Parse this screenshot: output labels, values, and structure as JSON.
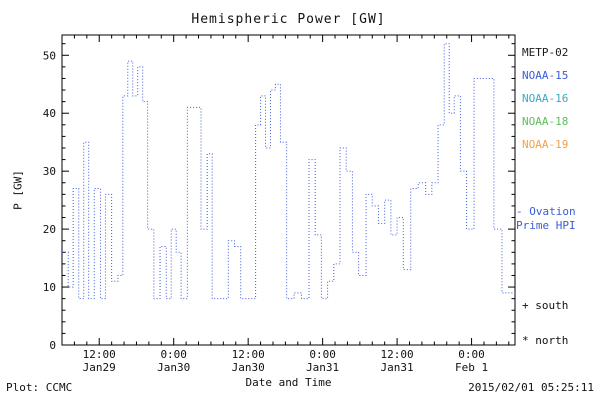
{
  "chart_data": {
    "type": "line",
    "subtype": "step",
    "line_style": "dotted",
    "line_color": "#3b5bdb",
    "title": "Hemispheric Power [GW]",
    "xlabel": "Date and Time",
    "ylabel": "P [GW]",
    "x_unit": "hours from 2015-01-29 00:00",
    "xlim": [
      6,
      79
    ],
    "ylim": [
      0,
      53.5
    ],
    "y_ticks": [
      0,
      10,
      20,
      30,
      40,
      50
    ],
    "x_ticks": [
      {
        "hour": 12,
        "time": "12:00",
        "date": "Jan29"
      },
      {
        "hour": 24,
        "time": "0:00",
        "date": "Jan30"
      },
      {
        "hour": 36,
        "time": "12:00",
        "date": "Jan30"
      },
      {
        "hour": 48,
        "time": "0:00",
        "date": "Jan31"
      },
      {
        "hour": 60,
        "time": "12:00",
        "date": "Jan31"
      },
      {
        "hour": 72,
        "time": "0:00",
        "date": "Feb 1"
      }
    ],
    "points": [
      [
        6,
        16
      ],
      [
        7,
        10
      ],
      [
        7.8,
        27
      ],
      [
        8.7,
        8
      ],
      [
        9.5,
        35
      ],
      [
        10.3,
        8
      ],
      [
        11.2,
        27
      ],
      [
        12.2,
        8
      ],
      [
        13,
        26
      ],
      [
        14,
        11
      ],
      [
        15,
        12
      ],
      [
        15.8,
        43
      ],
      [
        16.6,
        49
      ],
      [
        17.4,
        43
      ],
      [
        18.2,
        48
      ],
      [
        19,
        42
      ],
      [
        19.8,
        20
      ],
      [
        20.8,
        8
      ],
      [
        21.8,
        17
      ],
      [
        22.8,
        8
      ],
      [
        23.6,
        20
      ],
      [
        24.4,
        16
      ],
      [
        25.2,
        8
      ],
      [
        26.2,
        41
      ],
      [
        27.4,
        41
      ],
      [
        28.4,
        20
      ],
      [
        29.4,
        33
      ],
      [
        30.2,
        8
      ],
      [
        31.6,
        8
      ],
      [
        32.8,
        18
      ],
      [
        33.8,
        17
      ],
      [
        34.8,
        8
      ],
      [
        36.2,
        8
      ],
      [
        37.2,
        38
      ],
      [
        38,
        43
      ],
      [
        38.8,
        34
      ],
      [
        39.6,
        44
      ],
      [
        40.4,
        45
      ],
      [
        41.2,
        35
      ],
      [
        42.2,
        8
      ],
      [
        43.4,
        9
      ],
      [
        44.6,
        8
      ],
      [
        45.8,
        32
      ],
      [
        46.8,
        19
      ],
      [
        47.8,
        8
      ],
      [
        48.8,
        11
      ],
      [
        49.8,
        14
      ],
      [
        50.8,
        34
      ],
      [
        51.8,
        30
      ],
      [
        52.8,
        16
      ],
      [
        53.8,
        12
      ],
      [
        55,
        26
      ],
      [
        56,
        24
      ],
      [
        57,
        21
      ],
      [
        58,
        25
      ],
      [
        59,
        19
      ],
      [
        60,
        22
      ],
      [
        61,
        13
      ],
      [
        62.2,
        27
      ],
      [
        63.4,
        28
      ],
      [
        64.6,
        26
      ],
      [
        65.6,
        28
      ],
      [
        66.6,
        38
      ],
      [
        67.6,
        52
      ],
      [
        68.4,
        40
      ],
      [
        69.2,
        43
      ],
      [
        70.2,
        30
      ],
      [
        71.2,
        20
      ],
      [
        72.4,
        46
      ],
      [
        74,
        46
      ],
      [
        75.6,
        20
      ],
      [
        76.9,
        9
      ]
    ]
  },
  "legend": {
    "satellites": [
      {
        "label": "METP-02",
        "color": "#1a1a1a"
      },
      {
        "label": "NOAA-15",
        "color": "#3b5bdb"
      },
      {
        "label": "NOAA-16",
        "color": "#3aa8c9"
      },
      {
        "label": "NOAA-18",
        "color": "#5abf5a"
      },
      {
        "label": "NOAA-19",
        "color": "#f5a04a"
      }
    ],
    "ovation_label": [
      "- Ovation",
      "Prime HPI"
    ],
    "ovation_color": "#3b5bdb",
    "south": "+ south",
    "north": "* north"
  },
  "footer": {
    "plot_credit": "Plot: CCMC",
    "timestamp": "2015/02/01 05:25:11"
  }
}
